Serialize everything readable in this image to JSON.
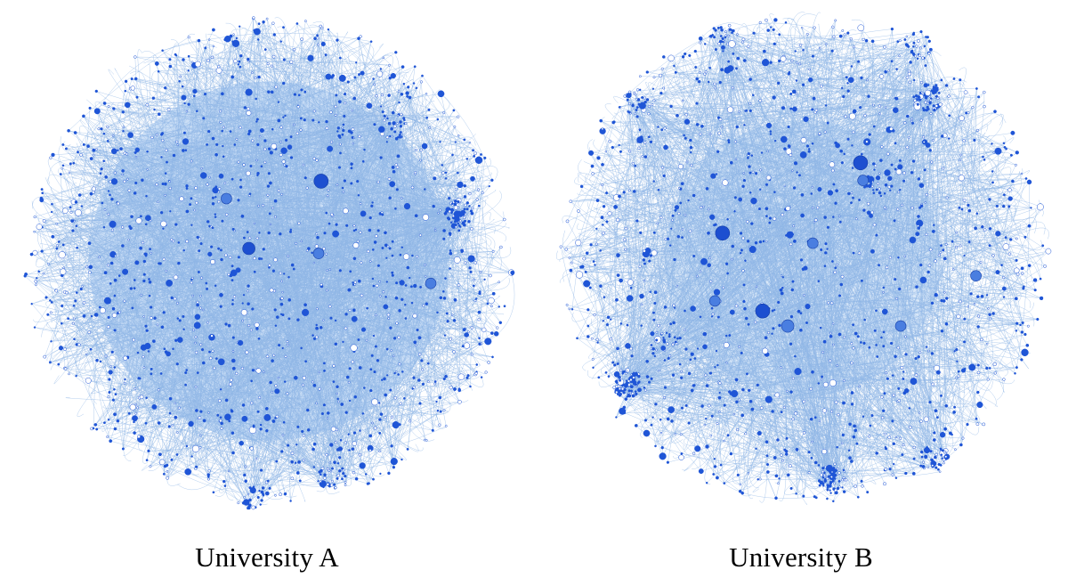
{
  "figure": {
    "panels": [
      {
        "id": "a",
        "caption": "University A"
      },
      {
        "id": "b",
        "caption": "University B"
      }
    ],
    "colors": {
      "edge": "#8fb6e6",
      "edge_dense": "#9ec2ee",
      "node": "#1f55d6",
      "node_fill": "#ffffff",
      "hub": "#1d4fd0",
      "hub_light": "#4a7ee0"
    }
  }
}
